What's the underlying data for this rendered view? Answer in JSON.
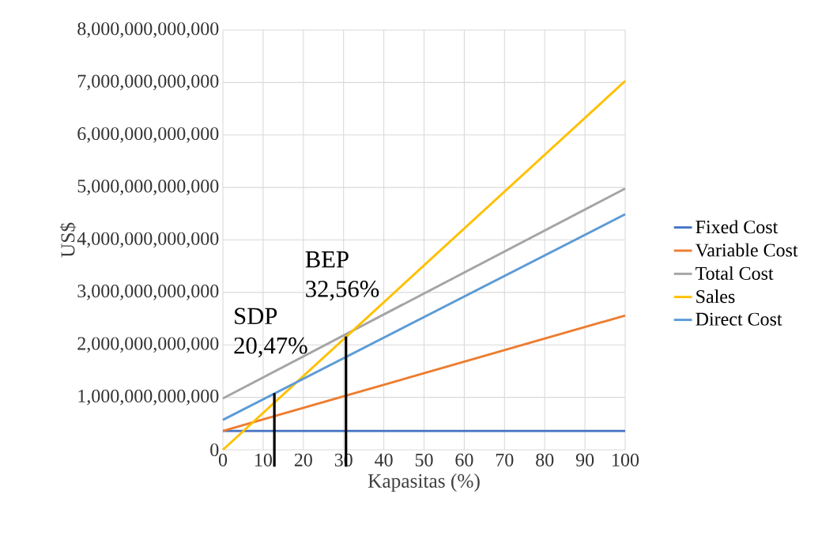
{
  "chart_data": {
    "type": "line",
    "xlabel": "Kapasitas (%)",
    "ylabel": "US$",
    "x": [
      0,
      100
    ],
    "series": [
      {
        "name": "Fixed Cost",
        "color": "#4472c4",
        "values": [
          360000000000,
          360000000000
        ]
      },
      {
        "name": "Variable Cost",
        "color": "#ed7d31",
        "values": [
          360000000000,
          2560000000000
        ]
      },
      {
        "name": "Total Cost",
        "color": "#a5a5a5",
        "values": [
          980000000000,
          4980000000000
        ]
      },
      {
        "name": "Sales",
        "color": "#ffc000",
        "values": [
          0,
          7030000000000
        ]
      },
      {
        "name": "Direct Cost",
        "color": "#5b9bd5",
        "values": [
          570000000000,
          4490000000000
        ]
      }
    ],
    "xlim": [
      0,
      100
    ],
    "xticks": [
      0,
      10,
      20,
      30,
      40,
      50,
      60,
      70,
      80,
      90,
      100
    ],
    "ylim": [
      0,
      8000000000000
    ],
    "yticks": [
      {
        "value": 0,
        "label": "0"
      },
      {
        "value": 1000000000000,
        "label": "1,000,000,000,000"
      },
      {
        "value": 2000000000000,
        "label": "2,000,000,000,000"
      },
      {
        "value": 3000000000000,
        "label": "3,000,000,000,000"
      },
      {
        "value": 4000000000000,
        "label": "4,000,000,000,000"
      },
      {
        "value": 5000000000000,
        "label": "5,000,000,000,000"
      },
      {
        "value": 6000000000000,
        "label": "6,000,000,000,000"
      },
      {
        "value": 7000000000000,
        "label": "7,000,000,000,000"
      },
      {
        "value": 8000000000000,
        "label": "8,000,000,000,000"
      }
    ],
    "ref_lines": [
      {
        "axis": "x",
        "value": 12.8,
        "label": "SDP 20,47%",
        "color": "#000000"
      },
      {
        "axis": "x",
        "value": 30.6,
        "label": "BEP 32,56%",
        "color": "#000000"
      }
    ],
    "grid": true,
    "legend": "right"
  }
}
